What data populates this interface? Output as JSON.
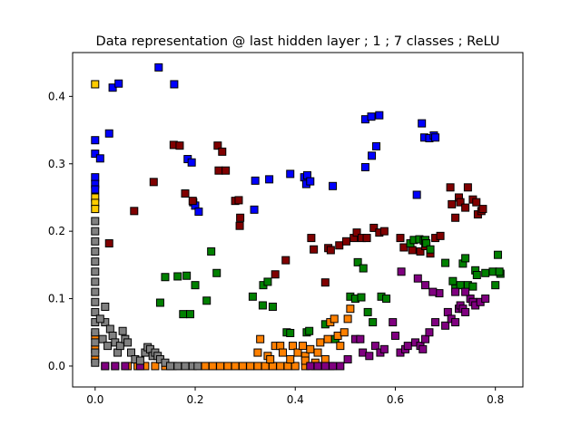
{
  "chart_data": {
    "type": "scatter",
    "title": "Data representation @ last hidden layer ; 1 ; 7 classes ; ReLU",
    "xlabel": "",
    "ylabel": "",
    "xlim": [
      -0.045,
      0.855
    ],
    "ylim": [
      -0.031,
      0.465
    ],
    "xticks": [
      {
        "v": 0.0,
        "label": "0.0"
      },
      {
        "v": 0.2,
        "label": "0.2"
      },
      {
        "v": 0.4,
        "label": "0.4"
      },
      {
        "v": 0.6,
        "label": "0.6"
      },
      {
        "v": 0.8,
        "label": "0.8"
      }
    ],
    "yticks": [
      {
        "v": 0.0,
        "label": "0.0"
      },
      {
        "v": 0.1,
        "label": "0.1"
      },
      {
        "v": 0.2,
        "label": "0.2"
      },
      {
        "v": 0.3,
        "label": "0.3"
      },
      {
        "v": 0.4,
        "label": "0.4"
      }
    ],
    "grid": false,
    "marker": "square",
    "series": [
      {
        "color": "#0000ff",
        "points": [
          [
            0.0,
            0.335
          ],
          [
            0.0,
            0.315
          ],
          [
            0.01,
            0.308
          ],
          [
            0.028,
            0.345
          ],
          [
            0.035,
            0.413
          ],
          [
            0.047,
            0.419
          ],
          [
            0.127,
            0.443
          ],
          [
            0.158,
            0.418
          ],
          [
            0.185,
            0.307
          ],
          [
            0.193,
            0.302
          ],
          [
            0.196,
            0.243
          ],
          [
            0.2,
            0.238
          ],
          [
            0.207,
            0.229
          ],
          [
            0.32,
            0.275
          ],
          [
            0.318,
            0.232
          ],
          [
            0.348,
            0.277
          ],
          [
            0.39,
            0.285
          ],
          [
            0.418,
            0.28
          ],
          [
            0.422,
            0.27
          ],
          [
            0.424,
            0.283
          ],
          [
            0.43,
            0.274
          ],
          [
            0.475,
            0.267
          ],
          [
            0.54,
            0.295
          ],
          [
            0.54,
            0.366
          ],
          [
            0.552,
            0.37
          ],
          [
            0.568,
            0.372
          ],
          [
            0.553,
            0.312
          ],
          [
            0.562,
            0.326
          ],
          [
            0.643,
            0.254
          ],
          [
            0.653,
            0.36
          ],
          [
            0.658,
            0.339
          ],
          [
            0.668,
            0.338
          ],
          [
            0.677,
            0.342
          ],
          [
            0.68,
            0.339
          ],
          [
            0.0,
            0.28
          ],
          [
            0.0,
            0.27
          ],
          [
            0.0,
            0.262
          ]
        ]
      },
      {
        "color": "#ffcc00",
        "points": [
          [
            0.0,
            0.418
          ],
          [
            0.0,
            0.25
          ],
          [
            0.0,
            0.242
          ],
          [
            0.0,
            0.233
          ]
        ]
      },
      {
        "color": "#800000",
        "points": [
          [
            0.028,
            0.182
          ],
          [
            0.078,
            0.23
          ],
          [
            0.117,
            0.273
          ],
          [
            0.157,
            0.328
          ],
          [
            0.169,
            0.327
          ],
          [
            0.18,
            0.256
          ],
          [
            0.195,
            0.245
          ],
          [
            0.245,
            0.327
          ],
          [
            0.247,
            0.29
          ],
          [
            0.254,
            0.318
          ],
          [
            0.261,
            0.29
          ],
          [
            0.28,
            0.245
          ],
          [
            0.287,
            0.246
          ],
          [
            0.29,
            0.22
          ],
          [
            0.289,
            0.208
          ],
          [
            0.36,
            0.136
          ],
          [
            0.381,
            0.157
          ],
          [
            0.432,
            0.19
          ],
          [
            0.437,
            0.173
          ],
          [
            0.46,
            0.124
          ],
          [
            0.466,
            0.175
          ],
          [
            0.471,
            0.172
          ],
          [
            0.488,
            0.179
          ],
          [
            0.502,
            0.185
          ],
          [
            0.517,
            0.19
          ],
          [
            0.523,
            0.198
          ],
          [
            0.533,
            0.19
          ],
          [
            0.543,
            0.19
          ],
          [
            0.557,
            0.205
          ],
          [
            0.568,
            0.198
          ],
          [
            0.578,
            0.2
          ],
          [
            0.61,
            0.19
          ],
          [
            0.617,
            0.176
          ],
          [
            0.634,
            0.172
          ],
          [
            0.65,
            0.17
          ],
          [
            0.66,
            0.178
          ],
          [
            0.67,
            0.167
          ],
          [
            0.68,
            0.19
          ],
          [
            0.69,
            0.193
          ],
          [
            0.71,
            0.265
          ],
          [
            0.713,
            0.24
          ],
          [
            0.72,
            0.22
          ],
          [
            0.727,
            0.25
          ],
          [
            0.73,
            0.243
          ],
          [
            0.74,
            0.235
          ],
          [
            0.745,
            0.265
          ],
          [
            0.755,
            0.247
          ],
          [
            0.762,
            0.243
          ],
          [
            0.765,
            0.225
          ],
          [
            0.772,
            0.23
          ],
          [
            0.775,
            0.233
          ]
        ]
      },
      {
        "color": "#008000",
        "points": [
          [
            0.13,
            0.094
          ],
          [
            0.14,
            0.132
          ],
          [
            0.165,
            0.133
          ],
          [
            0.176,
            0.077
          ],
          [
            0.183,
            0.134
          ],
          [
            0.19,
            0.077
          ],
          [
            0.2,
            0.12
          ],
          [
            0.223,
            0.097
          ],
          [
            0.232,
            0.17
          ],
          [
            0.243,
            0.138
          ],
          [
            0.315,
            0.103
          ],
          [
            0.335,
            0.09
          ],
          [
            0.336,
            0.12
          ],
          [
            0.345,
            0.125
          ],
          [
            0.355,
            0.088
          ],
          [
            0.383,
            0.05
          ],
          [
            0.39,
            0.049
          ],
          [
            0.423,
            0.05
          ],
          [
            0.428,
            0.052
          ],
          [
            0.46,
            0.062
          ],
          [
            0.48,
            0.04
          ],
          [
            0.51,
            0.103
          ],
          [
            0.52,
            0.1
          ],
          [
            0.525,
            0.154
          ],
          [
            0.532,
            0.102
          ],
          [
            0.536,
            0.145
          ],
          [
            0.545,
            0.08
          ],
          [
            0.555,
            0.065
          ],
          [
            0.572,
            0.103
          ],
          [
            0.582,
            0.1
          ],
          [
            0.63,
            0.182
          ],
          [
            0.637,
            0.187
          ],
          [
            0.648,
            0.188
          ],
          [
            0.657,
            0.186
          ],
          [
            0.66,
            0.187
          ],
          [
            0.662,
            0.182
          ],
          [
            0.67,
            0.173
          ],
          [
            0.7,
            0.153
          ],
          [
            0.715,
            0.126
          ],
          [
            0.72,
            0.115
          ],
          [
            0.73,
            0.12
          ],
          [
            0.735,
            0.152
          ],
          [
            0.74,
            0.16
          ],
          [
            0.745,
            0.12
          ],
          [
            0.755,
            0.118
          ],
          [
            0.76,
            0.142
          ],
          [
            0.763,
            0.135
          ],
          [
            0.78,
            0.138
          ],
          [
            0.795,
            0.14
          ],
          [
            0.8,
            0.12
          ],
          [
            0.805,
            0.165
          ],
          [
            0.81,
            0.137
          ],
          [
            0.808,
            0.14
          ]
        ]
      },
      {
        "color": "#ff8000",
        "points": [
          [
            0.0,
            0.045
          ],
          [
            0.0,
            0.025
          ],
          [
            0.0,
            0.01
          ],
          [
            0.02,
            0.0
          ],
          [
            0.04,
            0.0
          ],
          [
            0.065,
            0.0
          ],
          [
            0.085,
            0.0
          ],
          [
            0.1,
            0.0
          ],
          [
            0.12,
            0.0
          ],
          [
            0.14,
            0.0
          ],
          [
            0.155,
            0.0
          ],
          [
            0.22,
            0.0
          ],
          [
            0.235,
            0.0
          ],
          [
            0.25,
            0.0
          ],
          [
            0.265,
            0.0
          ],
          [
            0.28,
            0.0
          ],
          [
            0.295,
            0.0
          ],
          [
            0.31,
            0.0
          ],
          [
            0.325,
            0.0
          ],
          [
            0.34,
            0.0
          ],
          [
            0.355,
            0.0
          ],
          [
            0.37,
            0.0
          ],
          [
            0.385,
            0.0
          ],
          [
            0.4,
            0.0
          ],
          [
            0.42,
            0.0
          ],
          [
            0.44,
            0.0
          ],
          [
            0.455,
            0.0
          ],
          [
            0.47,
            0.0
          ],
          [
            0.325,
            0.02
          ],
          [
            0.33,
            0.04
          ],
          [
            0.345,
            0.015
          ],
          [
            0.35,
            0.01
          ],
          [
            0.36,
            0.03
          ],
          [
            0.37,
            0.03
          ],
          [
            0.375,
            0.02
          ],
          [
            0.39,
            0.01
          ],
          [
            0.395,
            0.03
          ],
          [
            0.405,
            0.02
          ],
          [
            0.415,
            0.03
          ],
          [
            0.42,
            0.015
          ],
          [
            0.43,
            0.025
          ],
          [
            0.445,
            0.02
          ],
          [
            0.45,
            0.035
          ],
          [
            0.46,
            0.01
          ],
          [
            0.465,
            0.04
          ],
          [
            0.47,
            0.065
          ],
          [
            0.478,
            0.07
          ],
          [
            0.485,
            0.045
          ],
          [
            0.49,
            0.03
          ],
          [
            0.498,
            0.05
          ],
          [
            0.505,
            0.07
          ],
          [
            0.51,
            0.085
          ],
          [
            0.42,
            0.008
          ],
          [
            0.44,
            0.005
          ]
        ]
      },
      {
        "color": "#800080",
        "points": [
          [
            0.02,
            0.0
          ],
          [
            0.04,
            0.0
          ],
          [
            0.06,
            0.0
          ],
          [
            0.09,
            0.0
          ],
          [
            0.43,
            0.0
          ],
          [
            0.445,
            0.0
          ],
          [
            0.46,
            0.0
          ],
          [
            0.475,
            0.0
          ],
          [
            0.49,
            0.0
          ],
          [
            0.505,
            0.01
          ],
          [
            0.52,
            0.04
          ],
          [
            0.53,
            0.04
          ],
          [
            0.535,
            0.02
          ],
          [
            0.548,
            0.015
          ],
          [
            0.56,
            0.03
          ],
          [
            0.57,
            0.02
          ],
          [
            0.578,
            0.025
          ],
          [
            0.595,
            0.065
          ],
          [
            0.6,
            0.045
          ],
          [
            0.61,
            0.02
          ],
          [
            0.62,
            0.025
          ],
          [
            0.625,
            0.03
          ],
          [
            0.64,
            0.035
          ],
          [
            0.65,
            0.03
          ],
          [
            0.655,
            0.025
          ],
          [
            0.66,
            0.04
          ],
          [
            0.668,
            0.05
          ],
          [
            0.68,
            0.065
          ],
          [
            0.7,
            0.06
          ],
          [
            0.705,
            0.08
          ],
          [
            0.712,
            0.07
          ],
          [
            0.72,
            0.065
          ],
          [
            0.727,
            0.085
          ],
          [
            0.73,
            0.09
          ],
          [
            0.735,
            0.085
          ],
          [
            0.74,
            0.08
          ],
          [
            0.75,
            0.1
          ],
          [
            0.755,
            0.095
          ],
          [
            0.76,
            0.09
          ],
          [
            0.77,
            0.095
          ],
          [
            0.78,
            0.1
          ],
          [
            0.74,
            0.11
          ],
          [
            0.72,
            0.11
          ],
          [
            0.688,
            0.108
          ],
          [
            0.675,
            0.11
          ],
          [
            0.66,
            0.12
          ],
          [
            0.645,
            0.13
          ],
          [
            0.612,
            0.14
          ]
        ]
      },
      {
        "color": "#808080",
        "points": [
          [
            0.0,
            0.215
          ],
          [
            0.0,
            0.2
          ],
          [
            0.0,
            0.185
          ],
          [
            0.0,
            0.17
          ],
          [
            0.0,
            0.155
          ],
          [
            0.0,
            0.14
          ],
          [
            0.0,
            0.125
          ],
          [
            0.0,
            0.11
          ],
          [
            0.0,
            0.095
          ],
          [
            0.0,
            0.08
          ],
          [
            0.0,
            0.065
          ],
          [
            0.0,
            0.05
          ],
          [
            0.0,
            0.035
          ],
          [
            0.0,
            0.02
          ],
          [
            0.0,
            0.005
          ],
          [
            0.02,
            0.088
          ],
          [
            0.02,
            0.065
          ],
          [
            0.03,
            0.055
          ],
          [
            0.035,
            0.045
          ],
          [
            0.04,
            0.035
          ],
          [
            0.045,
            0.02
          ],
          [
            0.05,
            0.03
          ],
          [
            0.055,
            0.052
          ],
          [
            0.06,
            0.04
          ],
          [
            0.065,
            0.035
          ],
          [
            0.072,
            0.02
          ],
          [
            0.08,
            0.01
          ],
          [
            0.09,
            0.008
          ],
          [
            0.1,
            0.02
          ],
          [
            0.105,
            0.028
          ],
          [
            0.11,
            0.025
          ],
          [
            0.115,
            0.015
          ],
          [
            0.12,
            0.02
          ],
          [
            0.125,
            0.015
          ],
          [
            0.13,
            0.01
          ],
          [
            0.14,
            0.005
          ],
          [
            0.15,
            0.0
          ],
          [
            0.165,
            0.0
          ],
          [
            0.18,
            0.0
          ],
          [
            0.195,
            0.0
          ],
          [
            0.205,
            0.0
          ],
          [
            0.01,
            0.07
          ],
          [
            0.015,
            0.04
          ],
          [
            0.025,
            0.03
          ]
        ]
      }
    ]
  }
}
